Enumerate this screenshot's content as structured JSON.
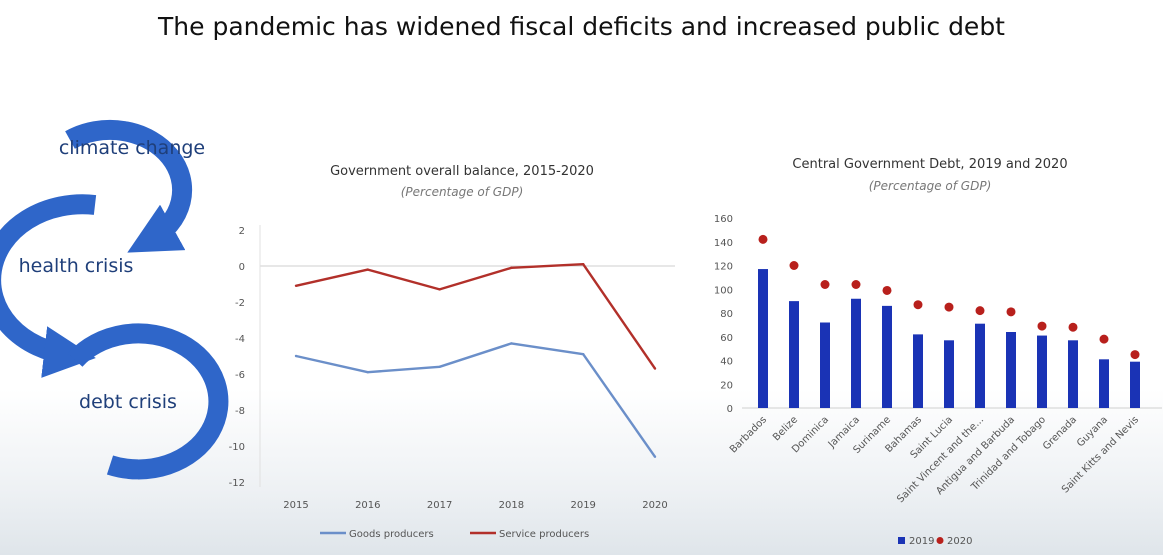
{
  "page": {
    "title": "The pandemic has widened fiscal deficits and increased public debt"
  },
  "cycle": {
    "labels": [
      "climate change",
      "health crisis",
      "debt crisis"
    ],
    "color": "#2f66c9"
  },
  "chart_data": [
    {
      "type": "line",
      "title": "Government overall balance, 2015-2020",
      "subtitle": "(Percentage of GDP)",
      "x": [
        "2015",
        "2016",
        "2017",
        "2018",
        "2019",
        "2020"
      ],
      "ylim": [
        -12,
        2
      ],
      "yticks": [
        2,
        0,
        -2,
        -4,
        -6,
        -8,
        -10,
        -12
      ],
      "series": [
        {
          "name": "Goods producers",
          "color": "#6b8fc9",
          "values": [
            -5.0,
            -5.9,
            -5.6,
            -4.3,
            -4.9,
            -10.6
          ]
        },
        {
          "name": "Service producers",
          "color": "#b2302a",
          "values": [
            -1.1,
            -0.2,
            -1.3,
            -0.1,
            0.1,
            -5.7
          ]
        }
      ],
      "legend": "bottom"
    },
    {
      "type": "bar",
      "title": "Central Government Debt, 2019 and 2020",
      "subtitle": "(Percentage of GDP)",
      "categories": [
        "Barbados",
        "Belize",
        "Dominica",
        "Jamaica",
        "Suriname",
        "Bahamas",
        "Saint Lucia",
        "Saint Vincent and the...",
        "Antigua and Barbuda",
        "Trinidad and Tobago",
        "Grenada",
        "Guyana",
        "Saint Kitts and Nevis"
      ],
      "ylim": [
        0,
        160
      ],
      "yticks": [
        160,
        140,
        120,
        100,
        80,
        60,
        40,
        20,
        0
      ],
      "series": [
        {
          "name": "2019",
          "type": "bar",
          "color": "#1a33b5",
          "values": [
            117,
            90,
            72,
            92,
            86,
            62,
            57,
            71,
            64,
            61,
            57,
            41,
            39
          ]
        },
        {
          "name": "2020",
          "type": "scatter",
          "color": "#b8201c",
          "values": [
            142,
            120,
            104,
            104,
            99,
            87,
            85,
            82,
            81,
            69,
            68,
            58,
            45
          ]
        }
      ],
      "legend": "bottom"
    }
  ]
}
